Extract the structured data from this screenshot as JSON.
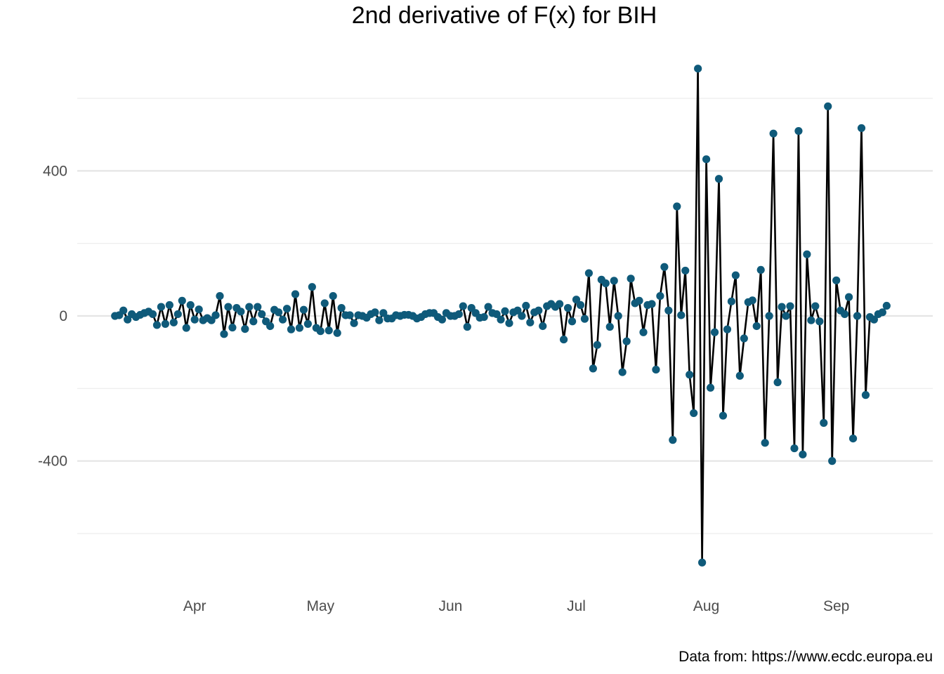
{
  "chart_data": {
    "type": "line",
    "title": "2nd derivative of F(x) for BIH",
    "xlabel": "",
    "ylabel": "",
    "caption": "Data from: https://www.ecdc.europa.eu",
    "x_start": "2020-03-13",
    "x_step_days": 1,
    "xlim": [
      "2020-03-04",
      "2020-09-24"
    ],
    "ylim": [
      -755,
      755
    ],
    "x_ticks": [
      {
        "label": "Apr",
        "date": "2020-04-01"
      },
      {
        "label": "May",
        "date": "2020-05-01"
      },
      {
        "label": "Jun",
        "date": "2020-06-01"
      },
      {
        "label": "Jul",
        "date": "2020-07-01"
      },
      {
        "label": "Aug",
        "date": "2020-08-01"
      },
      {
        "label": "Sep",
        "date": "2020-09-01"
      }
    ],
    "y_ticks": [
      {
        "label": "400",
        "value": 400
      },
      {
        "label": "0",
        "value": 0
      },
      {
        "label": "-400",
        "value": -400
      }
    ],
    "y_minor": [
      -600,
      -200,
      200,
      600
    ],
    "grid": true,
    "legend": "none",
    "point_color": "#0f5a7a",
    "line_color": "#000000",
    "series": [
      {
        "values": [
          0,
          2,
          15,
          -10,
          5,
          -3,
          3,
          8,
          12,
          5,
          -25,
          25,
          -22,
          30,
          -18,
          5,
          42,
          -33,
          30,
          -10,
          18,
          -12,
          -6,
          -12,
          2,
          55,
          -50,
          25,
          -32,
          22,
          12,
          -36,
          25,
          -15,
          25,
          5,
          -15,
          -28,
          17,
          10,
          -10,
          20,
          -37,
          60,
          -33,
          17,
          -22,
          80,
          -33,
          -42,
          35,
          -40,
          55,
          -47,
          22,
          2,
          2,
          -20,
          2,
          0,
          -5,
          5,
          10,
          -12,
          8,
          -7,
          -7,
          2,
          0,
          3,
          3,
          0,
          -7,
          -3,
          5,
          8,
          8,
          -3,
          -10,
          8,
          0,
          0,
          5,
          27,
          -30,
          22,
          8,
          -5,
          -3,
          25,
          8,
          5,
          -10,
          13,
          -20,
          10,
          15,
          0,
          28,
          -18,
          10,
          15,
          -28,
          27,
          33,
          25,
          33,
          -65,
          22,
          -15,
          45,
          30,
          -8,
          118,
          -145,
          -80,
          100,
          90,
          -30,
          97,
          0,
          -155,
          -70,
          103,
          35,
          42,
          -45,
          30,
          33,
          -148,
          55,
          135,
          15,
          -342,
          302,
          2,
          125,
          -162,
          -268,
          682,
          -680,
          432,
          -198,
          -45,
          378,
          -275,
          -37,
          40,
          112,
          -165,
          -62,
          38,
          43,
          -28,
          127,
          -350,
          0,
          503,
          -183,
          25,
          0,
          27,
          -365,
          510,
          -382,
          170,
          -12,
          27,
          -15,
          -295,
          578,
          -400,
          98,
          15,
          5,
          52,
          -338,
          0,
          518,
          -218,
          -3,
          -10,
          5,
          10,
          28
        ]
      }
    ]
  }
}
